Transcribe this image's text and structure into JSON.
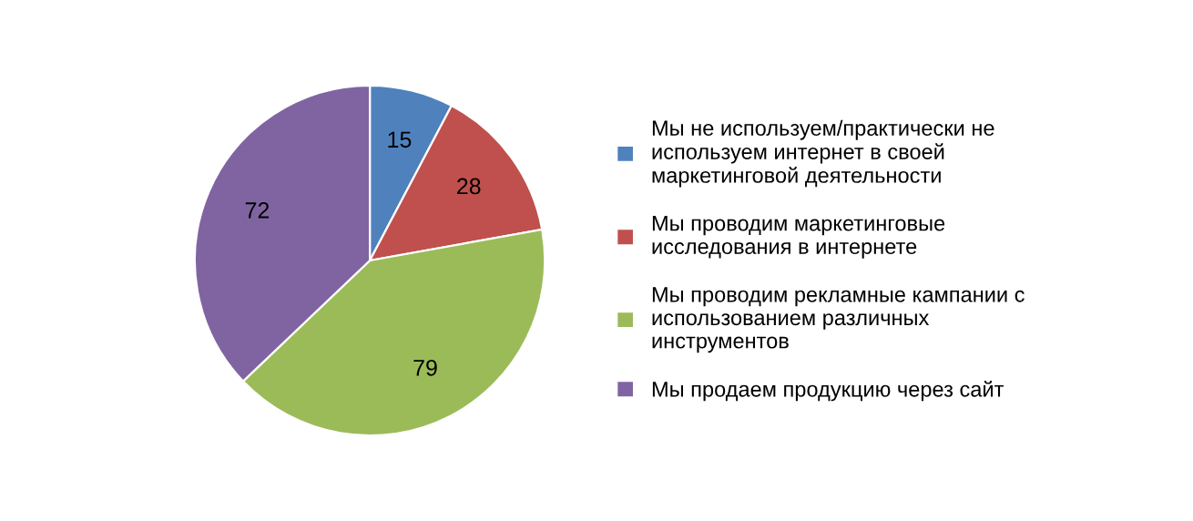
{
  "chart_data": {
    "type": "pie",
    "categories": [
      "Мы не используем/практически не используем интернет в своей маркетинговой деятельности",
      "Мы проводим маркетинговые исследования в интернете",
      "Мы проводим рекламные кампании с использованием различных инструментов",
      "Мы продаем продукцию через сайт"
    ],
    "values": [
      15,
      28,
      79,
      72
    ],
    "colors": [
      "#4f81bd",
      "#c0504d",
      "#9bbb59",
      "#8064a2"
    ],
    "data_labels": true,
    "legend": "right"
  }
}
